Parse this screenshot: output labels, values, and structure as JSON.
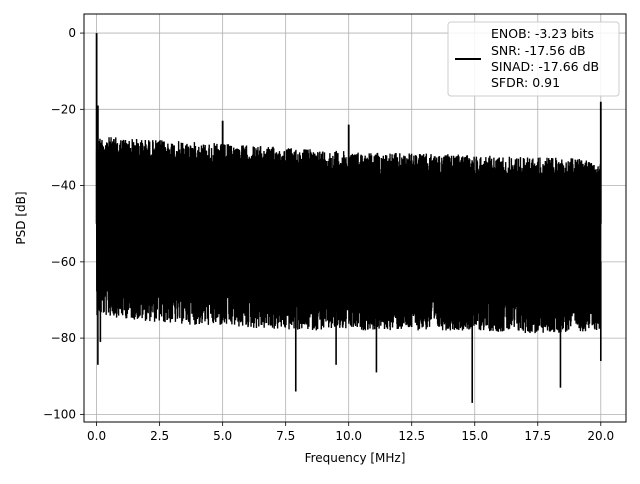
{
  "chart_data": {
    "type": "line",
    "title": "",
    "xlabel": "Frequency [MHz]",
    "ylabel": "PSD [dB]",
    "xlim": [
      -0.5,
      21.0
    ],
    "ylim": [
      -102,
      5
    ],
    "x_ticks": [
      0.0,
      2.5,
      5.0,
      7.5,
      10.0,
      12.5,
      15.0,
      17.5,
      20.0
    ],
    "x_tick_labels": [
      "0.0",
      "2.5",
      "5.0",
      "7.5",
      "10.0",
      "12.5",
      "15.0",
      "17.5",
      "20.0"
    ],
    "y_ticks": [
      0,
      -20,
      -40,
      -60,
      -80,
      -100
    ],
    "y_tick_labels": [
      "0",
      "−20",
      "−40",
      "−60",
      "−80",
      "−100"
    ],
    "grid": true,
    "legend_position": "top-right",
    "series": [
      {
        "name": "",
        "color": "#000000",
        "style": "dense noise floor",
        "x_range": [
          0.0,
          20.0
        ],
        "upper_envelope": {
          "x": [
            0.0,
            2.5,
            5.0,
            7.5,
            10.0,
            12.5,
            15.0,
            17.5,
            20.0
          ],
          "y": [
            -27,
            -28,
            -29,
            -30,
            -31,
            -31.5,
            -32,
            -32.5,
            -33
          ]
        },
        "lower_envelope": {
          "x": [
            0.0,
            2.5,
            5.0,
            7.5,
            10.0,
            12.5,
            15.0,
            17.5,
            20.0
          ],
          "y": [
            -68,
            -70,
            -71,
            -72,
            -72,
            -72,
            -72,
            -73,
            -72
          ]
        },
        "peaks": [
          {
            "x": 0.0,
            "y": 0
          },
          {
            "x": 0.05,
            "y": -19
          },
          {
            "x": 5.0,
            "y": -23
          },
          {
            "x": 10.0,
            "y": -24
          },
          {
            "x": 20.0,
            "y": -18
          }
        ],
        "dips": [
          {
            "x": 0.05,
            "y": -87
          },
          {
            "x": 0.15,
            "y": -81
          },
          {
            "x": 7.9,
            "y": -94
          },
          {
            "x": 9.5,
            "y": -87
          },
          {
            "x": 11.1,
            "y": -89
          },
          {
            "x": 14.9,
            "y": -97
          },
          {
            "x": 18.4,
            "y": -93
          },
          {
            "x": 20.0,
            "y": -86
          }
        ]
      }
    ],
    "legend": {
      "entries": [
        "ENOB: -3.23 bits",
        "SNR: -17.56 dB",
        "SINAD: -17.66 dB",
        "SFDR: 0.91"
      ]
    }
  }
}
